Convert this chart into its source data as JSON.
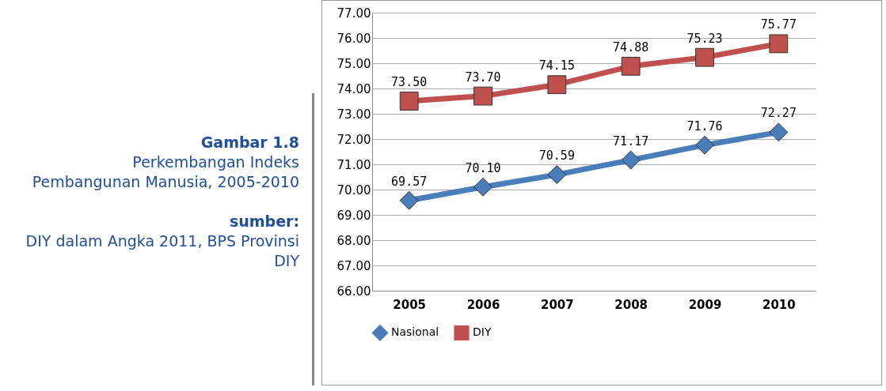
{
  "chart_data": {
    "type": "line",
    "title": "Gambar 1.8",
    "subtitle": "Perkembangan Indeks Pembangunan Manusia, 2005-2010",
    "annotations": [
      "sumber:",
      "DIY dalam Angka 2011, BPS Provinsi DIY"
    ],
    "categories": [
      "2005",
      "2006",
      "2007",
      "2008",
      "2009",
      "2010"
    ],
    "series": [
      {
        "name": "Nasional",
        "color": "#4a7ebb",
        "marker": "diamond",
        "values": [
          69.57,
          70.1,
          70.59,
          71.17,
          71.76,
          72.27
        ],
        "value_labels": [
          "69.57",
          "70.10",
          "70.59",
          "71.17",
          "71.76",
          "72.27"
        ]
      },
      {
        "name": "DIY",
        "color": "#c0504d",
        "marker": "square",
        "values": [
          73.5,
          73.7,
          74.15,
          74.88,
          75.23,
          75.77
        ],
        "value_labels": [
          "73.50",
          "73.70",
          "74.15",
          "74.88",
          "75.23",
          "75.77"
        ]
      }
    ],
    "ylim": [
      66,
      77
    ],
    "yticks": [
      {
        "value": 66,
        "label": "66.00"
      },
      {
        "value": 67,
        "label": "67.00"
      },
      {
        "value": 68,
        "label": "68.00"
      },
      {
        "value": 69,
        "label": "69.00"
      },
      {
        "value": 70,
        "label": "70.00"
      },
      {
        "value": 71,
        "label": "71.00"
      },
      {
        "value": 72,
        "label": "72.00"
      },
      {
        "value": 73,
        "label": "73.00"
      },
      {
        "value": 74,
        "label": "74.00"
      },
      {
        "value": 75,
        "label": "75.00"
      },
      {
        "value": 76,
        "label": "76.00"
      },
      {
        "value": 77,
        "label": "77.00"
      }
    ],
    "grid": "y",
    "legend": "bottom",
    "data_labels": true
  }
}
